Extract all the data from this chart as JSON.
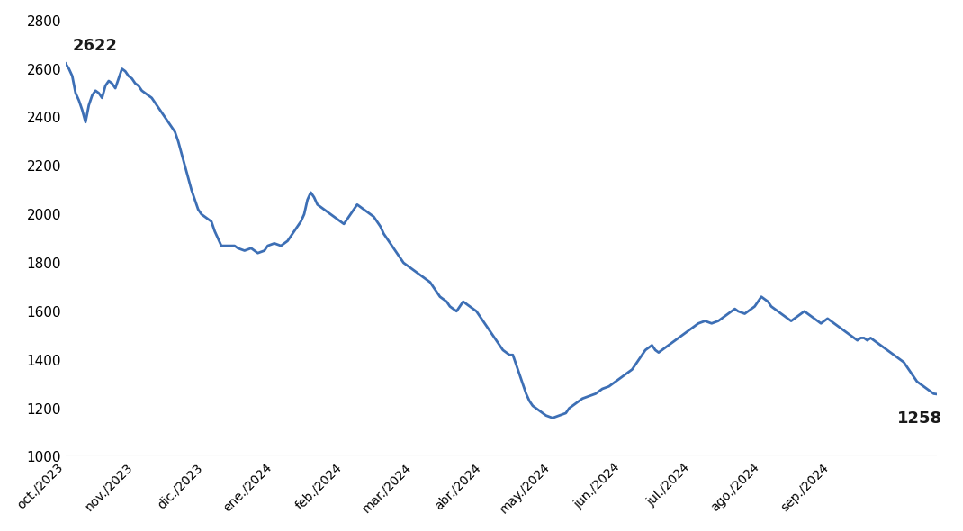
{
  "line_color": "#3D6FB5",
  "line_width": 2.0,
  "background_color": "#ffffff",
  "ylim": [
    1000,
    2800
  ],
  "yticks": [
    1000,
    1200,
    1400,
    1600,
    1800,
    2000,
    2200,
    2400,
    2600,
    2800
  ],
  "first_label_value": "2622",
  "last_label_value": "1258",
  "x_tick_labels": [
    "oct./2023",
    "nov./2023",
    "dic./2023",
    "ene./2024",
    "feb./2024",
    "mar./2024",
    "abr./2024",
    "may./2024",
    "jun./2024",
    "jul./2024",
    "ago./2024",
    "sep./2024"
  ],
  "data_points": [
    2622,
    2600,
    2570,
    2500,
    2470,
    2430,
    2380,
    2450,
    2490,
    2510,
    2500,
    2480,
    2530,
    2550,
    2540,
    2520,
    2560,
    2600,
    2590,
    2570,
    2560,
    2540,
    2530,
    2510,
    2500,
    2490,
    2480,
    2460,
    2440,
    2420,
    2400,
    2380,
    2360,
    2340,
    2300,
    2250,
    2200,
    2150,
    2100,
    2060,
    2020,
    2000,
    1990,
    1980,
    1970,
    1930,
    1900,
    1870,
    1870,
    1870,
    1870,
    1870,
    1860,
    1855,
    1850,
    1855,
    1860,
    1850,
    1840,
    1845,
    1850,
    1870,
    1875,
    1880,
    1875,
    1870,
    1880,
    1890,
    1910,
    1930,
    1950,
    1970,
    2000,
    2060,
    2090,
    2070,
    2040,
    2030,
    2020,
    2010,
    2000,
    1990,
    1980,
    1970,
    1960,
    1980,
    2000,
    2020,
    2040,
    2030,
    2020,
    2010,
    2000,
    1990,
    1970,
    1950,
    1920,
    1900,
    1880,
    1860,
    1840,
    1820,
    1800,
    1790,
    1780,
    1770,
    1760,
    1750,
    1740,
    1730,
    1720,
    1700,
    1680,
    1660,
    1650,
    1640,
    1620,
    1610,
    1600,
    1620,
    1640,
    1630,
    1620,
    1610,
    1600,
    1580,
    1560,
    1540,
    1520,
    1500,
    1480,
    1460,
    1440,
    1430,
    1420,
    1420,
    1380,
    1340,
    1300,
    1260,
    1230,
    1210,
    1200,
    1190,
    1180,
    1170,
    1165,
    1160,
    1165,
    1170,
    1175,
    1180,
    1200,
    1210,
    1220,
    1230,
    1240,
    1245,
    1250,
    1255,
    1260,
    1270,
    1280,
    1285,
    1290,
    1300,
    1310,
    1320,
    1330,
    1340,
    1350,
    1360,
    1380,
    1400,
    1420,
    1440,
    1450,
    1460,
    1440,
    1430,
    1440,
    1450,
    1460,
    1470,
    1480,
    1490,
    1500,
    1510,
    1520,
    1530,
    1540,
    1550,
    1555,
    1560,
    1555,
    1550,
    1555,
    1560,
    1570,
    1580,
    1590,
    1600,
    1610,
    1600,
    1595,
    1590,
    1600,
    1610,
    1620,
    1640,
    1660,
    1650,
    1640,
    1620,
    1610,
    1600,
    1590,
    1580,
    1570,
    1560,
    1570,
    1580,
    1590,
    1600,
    1590,
    1580,
    1570,
    1560,
    1550,
    1560,
    1570,
    1560,
    1550,
    1540,
    1530,
    1520,
    1510,
    1500,
    1490,
    1480,
    1490,
    1490,
    1480,
    1490,
    1480,
    1470,
    1460,
    1450,
    1440,
    1430,
    1420,
    1410,
    1400,
    1390,
    1370,
    1350,
    1330,
    1310,
    1300,
    1290,
    1280,
    1270,
    1260,
    1258
  ],
  "month_day_indices": [
    0,
    21,
    42,
    63,
    84,
    105,
    126,
    147,
    168,
    189,
    210,
    231
  ]
}
